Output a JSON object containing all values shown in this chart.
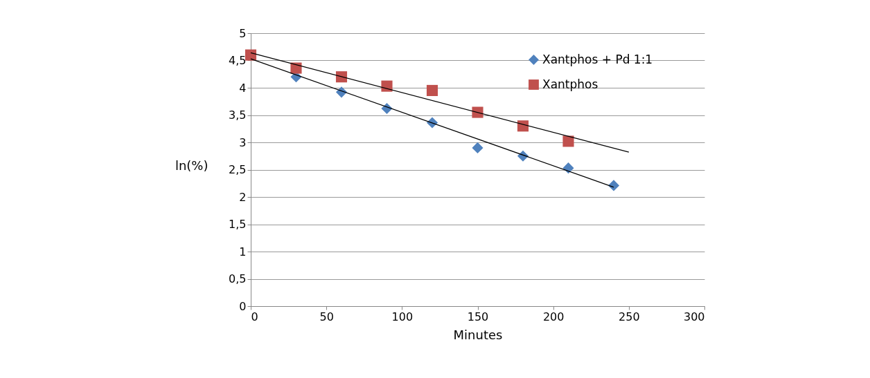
{
  "chart_data": {
    "type": "scatter",
    "xlabel": "Minutes",
    "ylabel": "ln(%)",
    "xlim": [
      0,
      300
    ],
    "xticks": [
      0,
      50,
      100,
      150,
      200,
      250,
      300
    ],
    "ylim": [
      0,
      5
    ],
    "yticks": [
      0,
      {
        "value": 0.5,
        "label": "0,5"
      },
      1,
      {
        "value": 1.5,
        "label": "1,5"
      },
      2,
      {
        "value": 2.5,
        "label": "2,5"
      },
      3,
      {
        "value": 3.5,
        "label": "3,5"
      },
      4,
      {
        "value": 4.5,
        "label": "4,5"
      },
      5
    ],
    "grid": "y",
    "legend": "top right",
    "series": [
      {
        "name": "Xantphos + Pd 1:1",
        "color": "#4f81bd",
        "marker": "diamond",
        "x": [
          30,
          60,
          90,
          120,
          150,
          180,
          210,
          240
        ],
        "values": [
          4.2,
          3.92,
          3.62,
          3.36,
          2.9,
          2.75,
          2.53,
          2.21
        ]
      },
      {
        "name": "Xantphos",
        "color": "#c0504d",
        "marker": "square",
        "x": [
          0,
          30,
          60,
          90,
          120,
          150,
          180,
          210
        ],
        "values": [
          4.6,
          4.36,
          4.2,
          4.03,
          3.95,
          3.55,
          3.3,
          3.02
        ]
      },
      {
        "type": "line",
        "color": "#000000",
        "line_style": "solid",
        "marker": "none",
        "x": [
          0,
          240
        ],
        "values": [
          4.53,
          2.18
        ]
      },
      {
        "type": "line",
        "color": "#000000",
        "line_style": "solid",
        "marker": "none",
        "x": [
          0,
          250
        ],
        "values": [
          4.64,
          2.82
        ]
      }
    ]
  }
}
